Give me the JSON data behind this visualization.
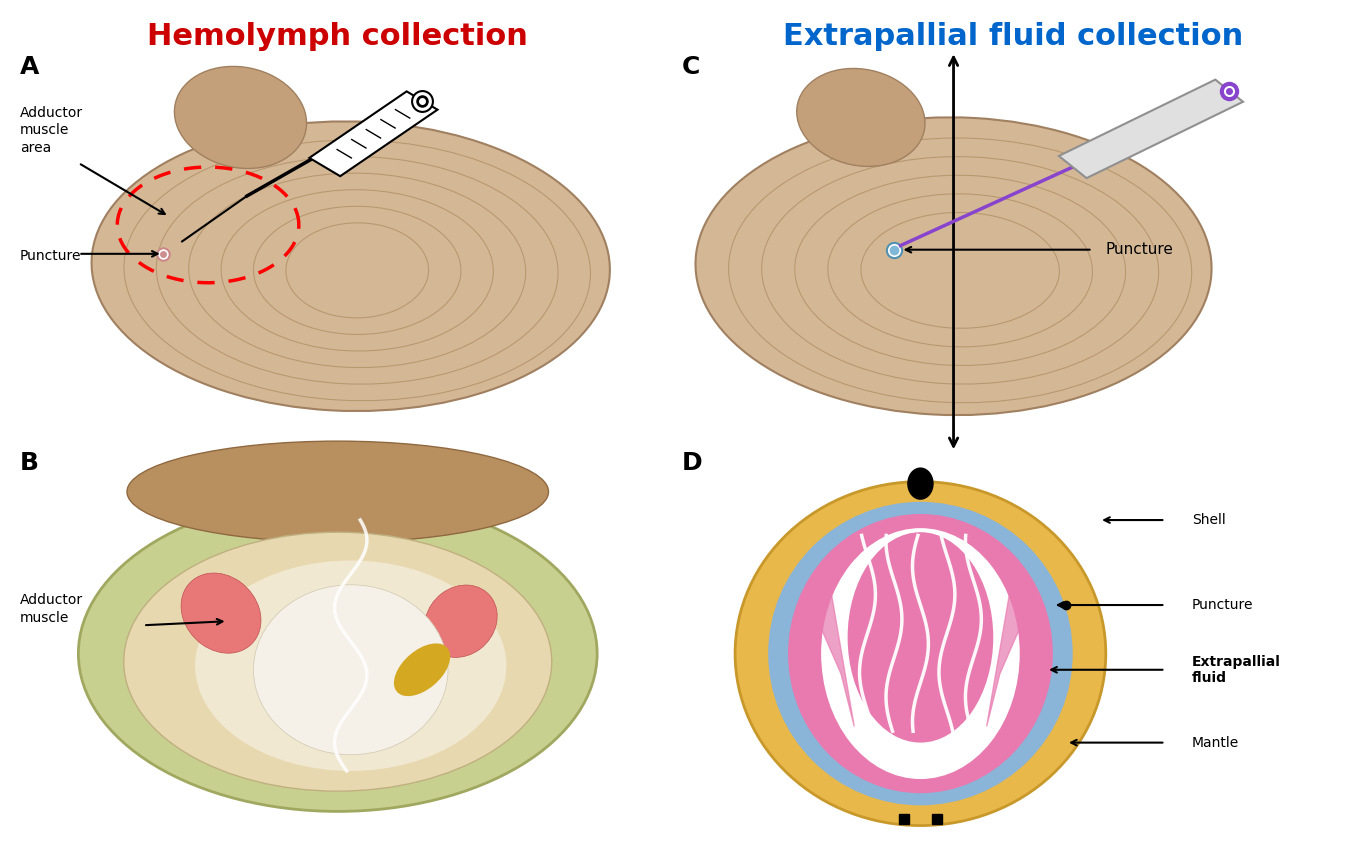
{
  "title_left": "Hemolymph collection",
  "title_right": "Extrapallial fluid collection",
  "title_left_color": "#cc0000",
  "title_right_color": "#0066cc",
  "title_fontsize": 22,
  "panel_labels": [
    "A",
    "B",
    "C",
    "D"
  ],
  "panel_label_fontsize": 18,
  "bg_color": "#ffffff",
  "shell_color_A": "#d4b896",
  "shell_ring_color_A": "#b89870",
  "umbo_color_A": "#c4a07a",
  "shell_edge_A": "#a08060",
  "shell_color_B_outer": "#c8d090",
  "shell_color_B_inner": "#e8d8b0",
  "muscle_color_B": "#e87878",
  "shell_color_C": "#d4b896",
  "shell_ring_color_C": "#b89870",
  "shell_golden": "#e8b84b",
  "mantle_blue": "#8ab4d8",
  "extrapallial_pink": "#e87ab0",
  "body_white": "#ffffff",
  "hinge_black": "#111111"
}
